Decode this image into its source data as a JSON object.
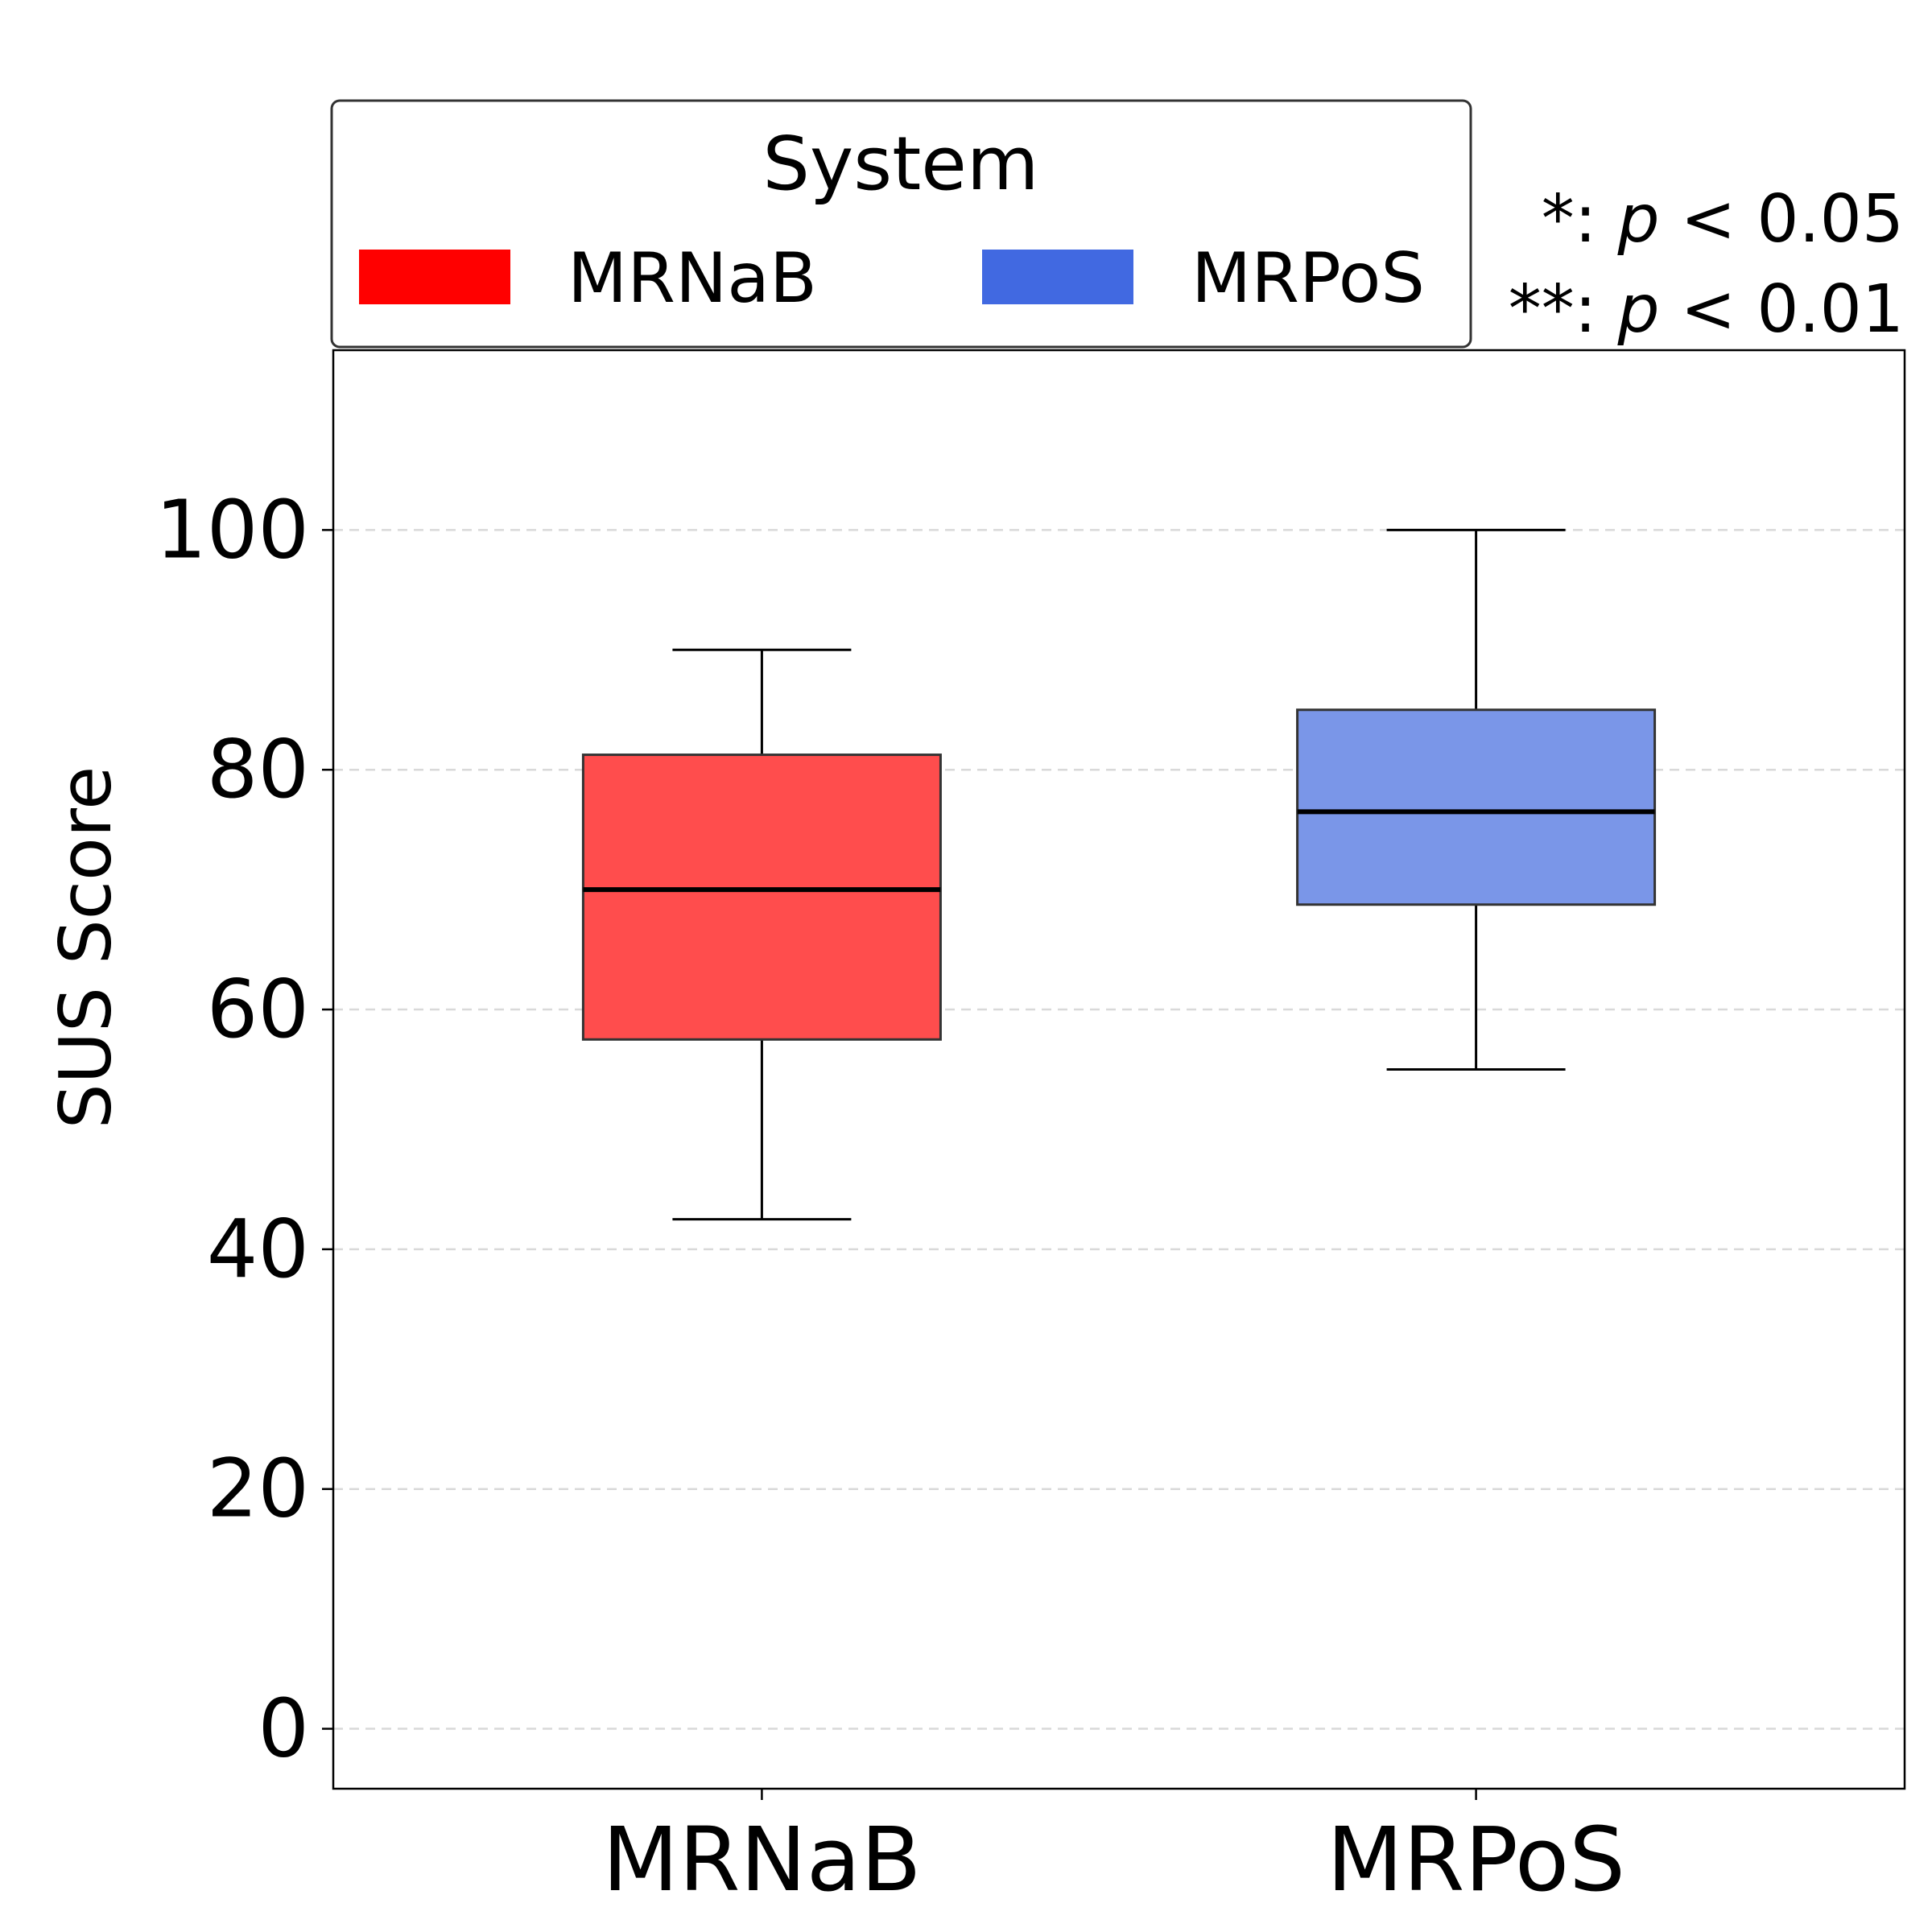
{
  "chart_data": {
    "type": "box",
    "ylabel": "SUS Score",
    "ylim": [
      -5,
      115
    ],
    "yticks": [
      0,
      20,
      40,
      60,
      80,
      100
    ],
    "ytick_labels": [
      "0",
      "20",
      "40",
      "60",
      "80",
      "100"
    ],
    "grid": "horizontal dashed",
    "categories": [
      "MRNaB",
      "MRPoS"
    ],
    "boxes": [
      {
        "name": "MRNaB",
        "whisker_low": 42.5,
        "q1": 57.5,
        "median": 70.0,
        "q3": 81.25,
        "whisker_high": 90.0,
        "color": "#ff0000",
        "fill": "#ff4d4d"
      },
      {
        "name": "MRPoS",
        "whisker_low": 55.0,
        "q1": 68.75,
        "median": 76.5,
        "q3": 85.0,
        "whisker_high": 100.0,
        "color": "#4169e1",
        "fill": "#7a96e8"
      }
    ],
    "legend": {
      "title": "System",
      "placement": "top",
      "entries": [
        {
          "label": "MRNaB",
          "color": "#ff0000"
        },
        {
          "label": "MRPoS",
          "color": "#4169e1"
        }
      ]
    },
    "significance_note": {
      "line1_stars": "*:",
      "line1_p": "p",
      "line1_rest": " < 0.05",
      "line2_stars": "**:",
      "line2_p": "p",
      "line2_rest": " < 0.01"
    }
  }
}
